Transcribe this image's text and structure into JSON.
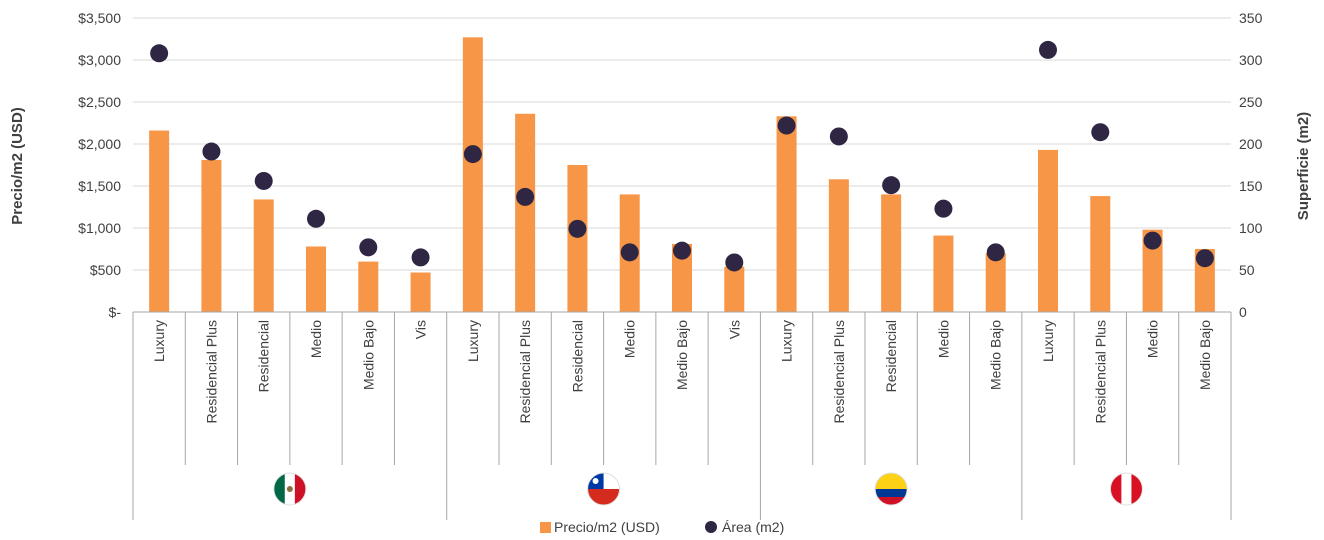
{
  "chart_data": {
    "type": "bar",
    "categories": [
      "Luxury",
      "Residencial Plus",
      "Residencial",
      "Medio",
      "Medio Bajo",
      "Vis",
      "Luxury",
      "Residencial Plus",
      "Residencial",
      "Medio",
      "Medio Bajo",
      "Vis",
      "Luxury",
      "Residencial Plus",
      "Residencial",
      "Medio",
      "Medio Bajo",
      "Luxury",
      "Residencial Plus",
      "Medio",
      "Medio Bajo"
    ],
    "groups": [
      {
        "country": "Mexico",
        "flag": "mexico-flag",
        "count": 6
      },
      {
        "country": "Chile",
        "flag": "chile-flag",
        "count": 6
      },
      {
        "country": "Colombia",
        "flag": "colombia-flag",
        "count": 5
      },
      {
        "country": "Peru",
        "flag": "peru-flag",
        "count": 4
      }
    ],
    "series": [
      {
        "name": "Precio/m2 (USD)",
        "type": "bar",
        "axis": "left",
        "color": "#F79646",
        "values": [
          2160,
          1810,
          1340,
          780,
          600,
          470,
          3270,
          2360,
          1750,
          1400,
          810,
          540,
          2330,
          1580,
          1400,
          910,
          700,
          1930,
          1380,
          980,
          750
        ]
      },
      {
        "name": "Área (m2)",
        "type": "scatter",
        "axis": "right",
        "color": "#2E2642",
        "values": [
          308,
          191,
          156,
          111,
          77,
          65,
          188,
          137,
          99,
          71,
          73,
          59,
          222,
          209,
          151,
          123,
          71,
          312,
          214,
          85,
          64
        ]
      }
    ],
    "y_left": {
      "label": "Precio/m2 (USD)",
      "ylim": [
        0,
        3500
      ],
      "ticks": [
        0,
        500,
        1000,
        1500,
        2000,
        2500,
        3000,
        3500
      ],
      "tick_labels": [
        "$-",
        "$500",
        "$1,000",
        "$1,500",
        "$2,000",
        "$2,500",
        "$3,000",
        "$3,500"
      ]
    },
    "y_right": {
      "label": "Superficie (m2)",
      "ylim": [
        0,
        350
      ],
      "ticks": [
        0,
        50,
        100,
        150,
        200,
        250,
        300,
        350
      ],
      "tick_labels": [
        "0",
        "50",
        "100",
        "150",
        "200",
        "250",
        "300",
        "350"
      ]
    },
    "grid": true,
    "legend_position": "bottom-center"
  }
}
